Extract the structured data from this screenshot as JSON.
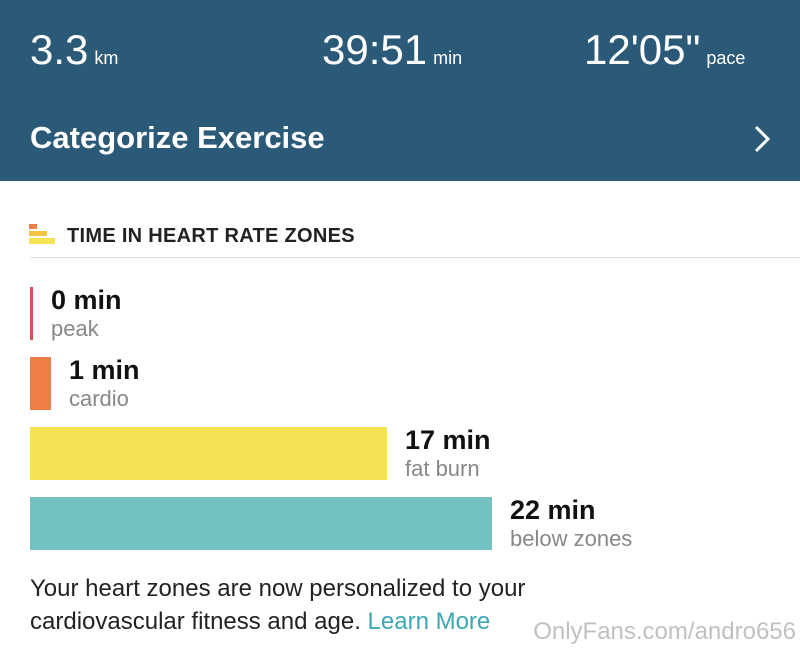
{
  "header": {
    "stats": [
      {
        "value": "3.3",
        "unit": "km"
      },
      {
        "value": "39:51",
        "unit": "min"
      },
      {
        "value": "12'05\"",
        "unit": "pace"
      }
    ],
    "action": "Categorize Exercise"
  },
  "section": {
    "title": "TIME IN HEART RATE ZONES",
    "zones": [
      {
        "minutes": 0,
        "label": "0 min",
        "name": "peak",
        "color": "#d9545a"
      },
      {
        "minutes": 1,
        "label": "1 min",
        "name": "cardio",
        "color": "#ee7e45"
      },
      {
        "minutes": 17,
        "label": "17 min",
        "name": "fat burn",
        "color": "#f6e354"
      },
      {
        "minutes": 22,
        "label": "22 min",
        "name": "below zones",
        "color": "#72c2c2"
      }
    ]
  },
  "footer": {
    "line1": "Your heart zones are now personalized to your",
    "line2": "cardiovascular fitness and age.",
    "link": "Learn More"
  },
  "watermark": "OnlyFans.com/andro656"
}
